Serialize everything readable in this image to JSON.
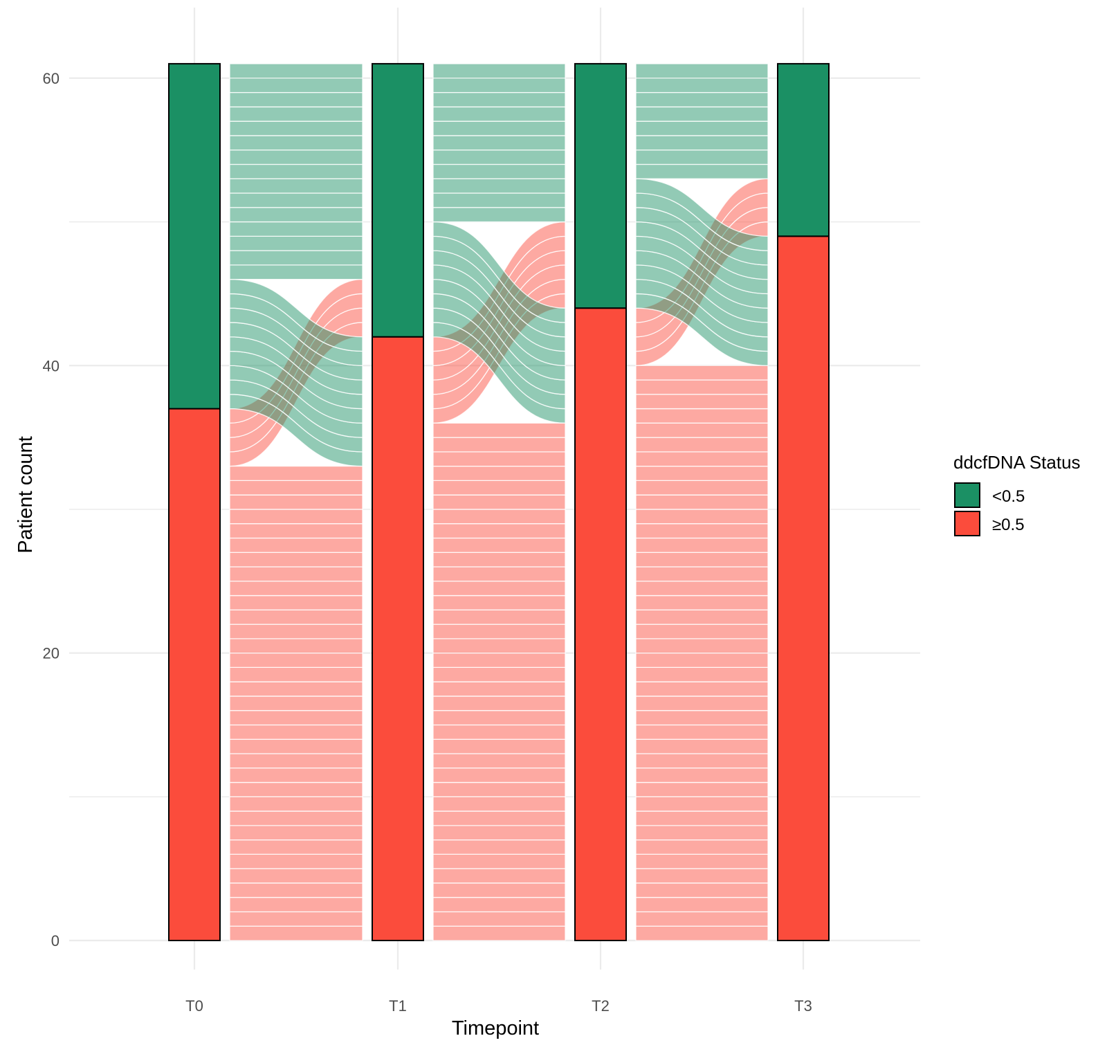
{
  "chart_data": {
    "type": "alluvial",
    "title": "",
    "xlabel": "Timepoint",
    "ylabel": "Patient count",
    "ylim": [
      0,
      61
    ],
    "yticks": [
      0,
      20,
      40,
      60
    ],
    "grid": true,
    "timepoints": [
      "T0",
      "T1",
      "T2",
      "T3"
    ],
    "categories": [
      "<0.5",
      "≥0.5"
    ],
    "colors": {
      "<0.5": "#1b9064",
      "≥0.5": "#fb4c3c",
      "grid": "#ebebeb",
      "outline": "#000000"
    },
    "stratum_counts": {
      "T0": {
        "<0.5": 24,
        "≥0.5": 37
      },
      "T1": {
        "<0.5": 19,
        "≥0.5": 42
      },
      "T2": {
        "<0.5": 17,
        "≥0.5": 44
      },
      "T3": {
        "<0.5": 12,
        "≥0.5": 49
      }
    },
    "transitions": [
      {
        "from": "T0",
        "to": "T1",
        "from_status": "<0.5",
        "to_status": "<0.5",
        "count": 15
      },
      {
        "from": "T0",
        "to": "T1",
        "from_status": "<0.5",
        "to_status": "≥0.5",
        "count": 9
      },
      {
        "from": "T0",
        "to": "T1",
        "from_status": "≥0.5",
        "to_status": "<0.5",
        "count": 4
      },
      {
        "from": "T0",
        "to": "T1",
        "from_status": "≥0.5",
        "to_status": "≥0.5",
        "count": 33
      },
      {
        "from": "T1",
        "to": "T2",
        "from_status": "<0.5",
        "to_status": "<0.5",
        "count": 11
      },
      {
        "from": "T1",
        "to": "T2",
        "from_status": "<0.5",
        "to_status": "≥0.5",
        "count": 8
      },
      {
        "from": "T1",
        "to": "T2",
        "from_status": "≥0.5",
        "to_status": "<0.5",
        "count": 6
      },
      {
        "from": "T1",
        "to": "T2",
        "from_status": "≥0.5",
        "to_status": "≥0.5",
        "count": 36
      },
      {
        "from": "T2",
        "to": "T3",
        "from_status": "<0.5",
        "to_status": "<0.5",
        "count": 8
      },
      {
        "from": "T2",
        "to": "T3",
        "from_status": "<0.5",
        "to_status": "≥0.5",
        "count": 9
      },
      {
        "from": "T2",
        "to": "T3",
        "from_status": "≥0.5",
        "to_status": "<0.5",
        "count": 4
      },
      {
        "from": "T2",
        "to": "T3",
        "from_status": "≥0.5",
        "to_status": "≥0.5",
        "count": 40
      }
    ],
    "legend": {
      "title": "ddcfDNA Status",
      "position": "right",
      "entries": [
        "<0.5",
        "≥0.5"
      ]
    }
  }
}
